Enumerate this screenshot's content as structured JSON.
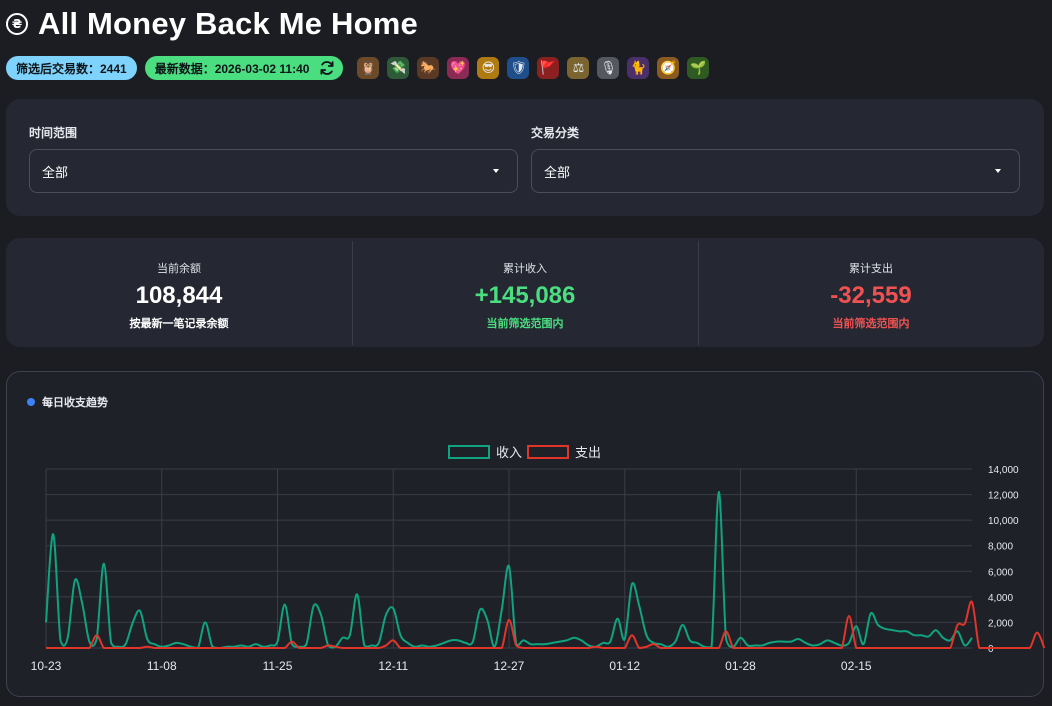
{
  "app": {
    "title": "All Money Back Me Home",
    "title_icon": "currency-circle-icon"
  },
  "badges": {
    "count_label": "筛选后交易数：2441",
    "latest_label": "最新数据：2026-03-02 11:40",
    "refresh_icon": "refresh-icon"
  },
  "emoji_icons": [
    {
      "name": "owl-icon",
      "glyph": "🦉",
      "bg": "#6b4a2a"
    },
    {
      "name": "money-wings-icon",
      "glyph": "💸",
      "bg": "#2f5a3a"
    },
    {
      "name": "horse-icon",
      "glyph": "🐎",
      "bg": "#5a3a24"
    },
    {
      "name": "sparkling-heart-icon",
      "glyph": "💖",
      "bg": "#8a2a55"
    },
    {
      "name": "sunglasses-face-icon",
      "glyph": "😎",
      "bg": "#b07a12"
    },
    {
      "name": "shield-icon",
      "glyph": "🛡",
      "bg": "#1f4f8a"
    },
    {
      "name": "flag-icon",
      "glyph": "🚩",
      "bg": "#8a2020"
    },
    {
      "name": "balance-scale-icon",
      "glyph": "⚖",
      "bg": "#7a6530"
    },
    {
      "name": "microphone-icon",
      "glyph": "🎙",
      "bg": "#55585f"
    },
    {
      "name": "black-cat-icon",
      "glyph": "🐈",
      "bg": "#4a2f6a"
    },
    {
      "name": "compass-icon",
      "glyph": "🧭",
      "bg": "#8a5a20"
    },
    {
      "name": "seedling-icon",
      "glyph": "🌱",
      "bg": "#2f5a22"
    }
  ],
  "filters": {
    "time_range": {
      "label": "时间范围",
      "value": "全部"
    },
    "category": {
      "label": "交易分类",
      "value": "全部"
    }
  },
  "stats": {
    "balance": {
      "label": "当前余额",
      "value": "108,844",
      "sub": "按最新一笔记录余额",
      "color": "#ffffff",
      "sub_color": "#ffffff"
    },
    "income": {
      "label": "累计收入",
      "value": "+145,086",
      "sub": "当前筛选范围内",
      "color": "#4ade80",
      "sub_color": "#4ade80"
    },
    "expense": {
      "label": "累计支出",
      "value": "-32,559",
      "sub": "当前筛选范围内",
      "color": "#f05252",
      "sub_color": "#f05252"
    }
  },
  "chart_section": {
    "title": "每日收支趋势"
  },
  "chart_data": {
    "type": "line",
    "title": "每日收支趋势",
    "x_tick_labels": [
      "10-23",
      "11-08",
      "11-25",
      "12-11",
      "12-27",
      "01-12",
      "01-28",
      "02-15"
    ],
    "x_tick_index": [
      0,
      16,
      32,
      48,
      64,
      80,
      96,
      112
    ],
    "ylim": [
      0,
      14000
    ],
    "y_ticks": [
      0,
      2000,
      4000,
      6000,
      8000,
      10000,
      12000,
      14000
    ],
    "y_tick_labels": [
      "0",
      "2,000",
      "4,000",
      "6,000",
      "8,000",
      "10,000",
      "12,000",
      "14,000"
    ],
    "y_axis_side": "right",
    "grid": true,
    "legend_position": "top-center",
    "series": [
      {
        "name": "收入",
        "color": "#10a37f",
        "values": [
          2000,
          8900,
          600,
          800,
          5300,
          3500,
          500,
          700,
          6600,
          400,
          100,
          300,
          2000,
          2900,
          700,
          300,
          100,
          200,
          400,
          300,
          100,
          0,
          2000,
          100,
          0,
          100,
          100,
          200,
          100,
          300,
          100,
          200,
          500,
          3400,
          300,
          100,
          300,
          3300,
          2600,
          200,
          100,
          800,
          1000,
          4200,
          200,
          200,
          400,
          2600,
          3100,
          1000,
          400,
          100,
          200,
          100,
          200,
          400,
          600,
          600,
          400,
          500,
          3000,
          2200,
          100,
          3000,
          6400,
          300,
          600,
          300,
          300,
          300,
          400,
          500,
          600,
          800,
          600,
          200,
          100,
          400,
          500,
          2300,
          700,
          5000,
          3300,
          1000,
          400,
          300,
          100,
          500,
          1800,
          600,
          400,
          100,
          100,
          12200,
          700,
          100,
          800,
          200,
          200,
          200,
          400,
          500,
          500,
          500,
          700,
          400,
          200,
          300,
          600,
          400,
          200,
          400,
          1700,
          300,
          2700,
          1800,
          1500,
          1400,
          1300,
          1300,
          1000,
          1000,
          900,
          1400,
          800,
          600,
          1300,
          200,
          800
        ]
      },
      {
        "name": "支出",
        "color": "#e0352b",
        "values": [
          0,
          0,
          0,
          0,
          0,
          0,
          0,
          1000,
          0,
          0,
          0,
          0,
          0,
          0,
          100,
          0,
          0,
          0,
          0,
          0,
          0,
          0,
          0,
          0,
          0,
          0,
          0,
          0,
          0,
          0,
          0,
          0,
          0,
          0,
          500,
          0,
          0,
          0,
          0,
          200,
          100,
          0,
          0,
          0,
          0,
          0,
          0,
          200,
          600,
          0,
          0,
          0,
          0,
          0,
          0,
          0,
          0,
          0,
          0,
          0,
          0,
          0,
          0,
          0,
          2200,
          200,
          0,
          0,
          0,
          0,
          0,
          0,
          0,
          0,
          0,
          0,
          100,
          0,
          0,
          0,
          0,
          1000,
          0,
          100,
          300,
          0,
          0,
          0,
          0,
          0,
          0,
          0,
          0,
          0,
          1300,
          0,
          0,
          0,
          0,
          0,
          0,
          0,
          0,
          0,
          0,
          0,
          0,
          0,
          0,
          0,
          0,
          2500,
          0,
          0,
          0,
          0,
          0,
          0,
          0,
          0,
          0,
          0,
          0,
          0,
          0,
          0,
          1800,
          1900,
          3600,
          0,
          0,
          0,
          0,
          0,
          0,
          0,
          0,
          1200,
          0
        ]
      }
    ]
  }
}
